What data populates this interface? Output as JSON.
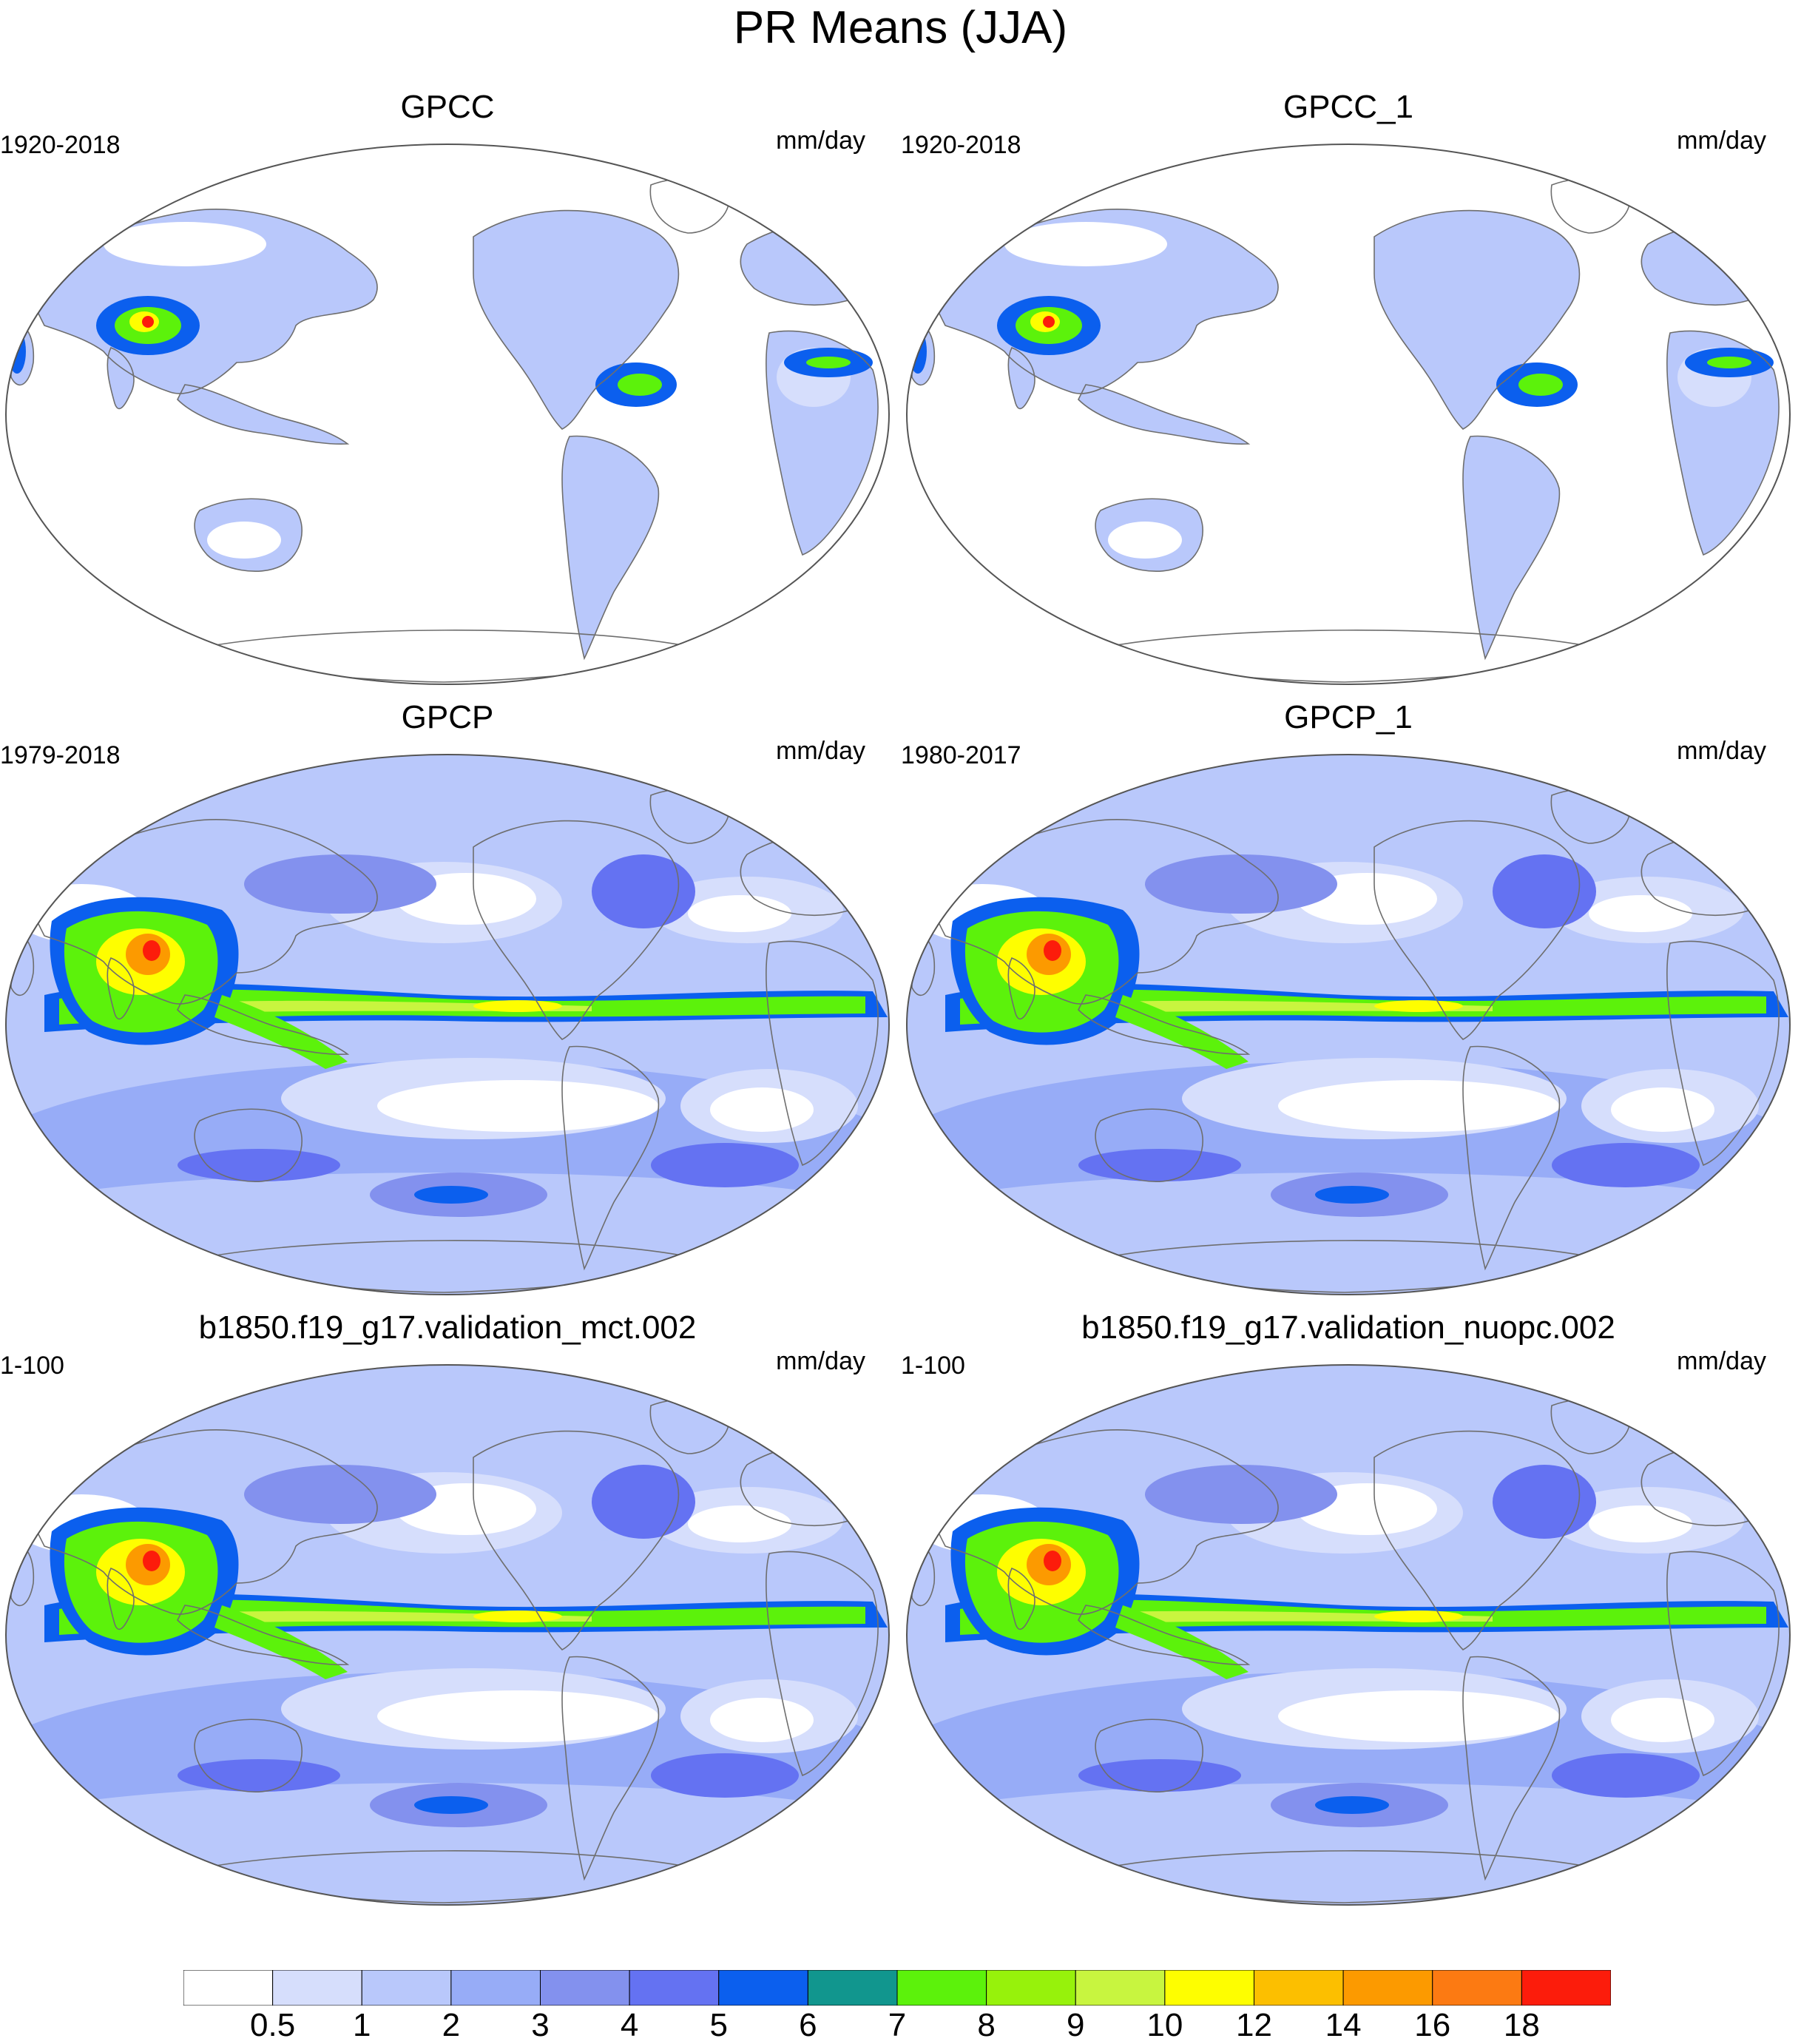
{
  "title": "PR Means (JJA)",
  "panels": [
    {
      "title": "GPCC",
      "years": "1920-2018",
      "units": "mm/day",
      "kind": "land"
    },
    {
      "title": "GPCC_1",
      "years": "1920-2018",
      "units": "mm/day",
      "kind": "land"
    },
    {
      "title": "GPCP",
      "years": "1979-2018",
      "units": "mm/day",
      "kind": "global"
    },
    {
      "title": "GPCP_1",
      "years": "1980-2017",
      "units": "mm/day",
      "kind": "global"
    },
    {
      "title": "b1850.f19_g17.validation_mct.002",
      "years": "1-100",
      "units": "mm/day",
      "kind": "model"
    },
    {
      "title": "b1850.f19_g17.validation_nuopc.002",
      "years": "1-100",
      "units": "mm/day",
      "kind": "model"
    }
  ],
  "colorbar": {
    "labels": [
      "0.5",
      "1",
      "2",
      "3",
      "4",
      "5",
      "6",
      "7",
      "8",
      "9",
      "10",
      "12",
      "14",
      "16",
      "18"
    ],
    "colors": [
      "#ffffff",
      "#d6defc",
      "#b9c8fb",
      "#97acf7",
      "#8391ee",
      "#6472f2",
      "#0b5fee",
      "#11968e",
      "#5cf20b",
      "#97f20b",
      "#c8f53f",
      "#fefe00",
      "#fcbf00",
      "#fc9a00",
      "#fc7a12",
      "#fc1c0b"
    ]
  },
  "colors": {
    "coastline": "#6e6e6e",
    "frame": "#555555"
  }
}
